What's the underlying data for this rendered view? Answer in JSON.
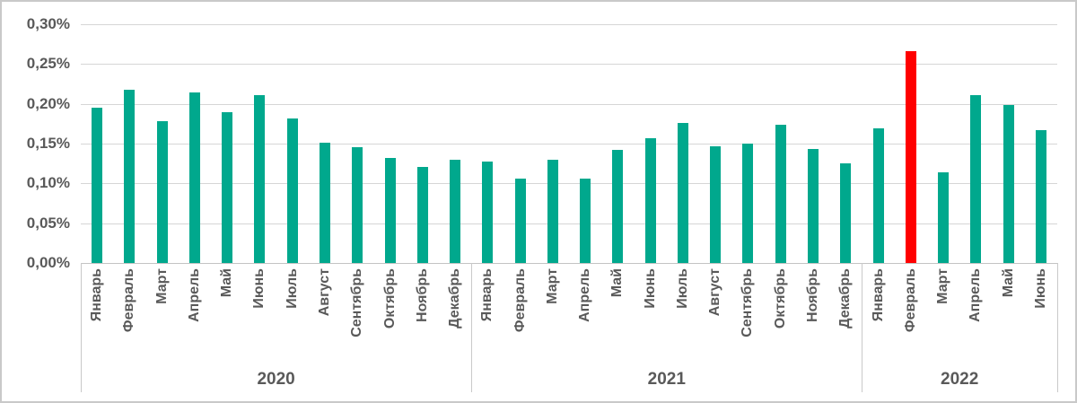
{
  "chart_data": {
    "type": "bar",
    "title": "",
    "xlabel": "",
    "ylabel": "",
    "grid": true,
    "legend": "none",
    "value_unit": "percent",
    "ylim": [
      0,
      0.3
    ],
    "y_ticks": [
      {
        "label": "0,00%",
        "value": 0.0
      },
      {
        "label": "0,05%",
        "value": 0.05
      },
      {
        "label": "0,10%",
        "value": 0.1
      },
      {
        "label": "0,15%",
        "value": 0.15
      },
      {
        "label": "0,20%",
        "value": 0.2
      },
      {
        "label": "0,25%",
        "value": 0.25
      },
      {
        "label": "0,30%",
        "value": 0.3
      }
    ],
    "bar_color": "#00A88D",
    "highlight_color": "#FF0000",
    "highlight": {
      "group": "2022",
      "category": "Февраль"
    },
    "groups": [
      {
        "label": "2020",
        "categories": [
          "Январь",
          "Февраль",
          "Март",
          "Апрель",
          "Май",
          "Июнь",
          "Июль",
          "Август",
          "Сентябрь",
          "Октябрь",
          "Ноябрь",
          "Декабрь"
        ],
        "values": [
          0.195,
          0.218,
          0.178,
          0.214,
          0.189,
          0.211,
          0.182,
          0.151,
          0.145,
          0.132,
          0.121,
          0.13
        ]
      },
      {
        "label": "2021",
        "categories": [
          "Январь",
          "Февраль",
          "Март",
          "Апрель",
          "Май",
          "Июнь",
          "Июль",
          "Август",
          "Сентябрь",
          "Октябрь",
          "Ноябрь",
          "Декабрь"
        ],
        "values": [
          0.128,
          0.106,
          0.13,
          0.106,
          0.142,
          0.157,
          0.176,
          0.147,
          0.15,
          0.174,
          0.143,
          0.125
        ]
      },
      {
        "label": "2022",
        "categories": [
          "Январь",
          "Февраль",
          "Март",
          "Апрель",
          "Май",
          "Июнь"
        ],
        "values": [
          0.169,
          0.266,
          0.114,
          0.211,
          0.198,
          0.167
        ]
      }
    ],
    "colors": {
      "grid": "#D6D6D6",
      "axis": "#C3C3C3",
      "text": "#595959",
      "frame_border": "#C9C9C9"
    }
  }
}
